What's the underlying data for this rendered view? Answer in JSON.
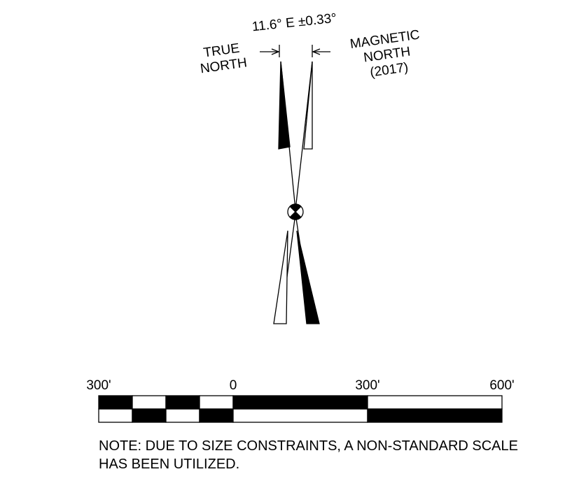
{
  "declination": "11.6° E ±0.33°",
  "true_north": {
    "lines": [
      "TRUE",
      "NORTH"
    ]
  },
  "magnetic_north": {
    "lines": [
      "MAGNETIC",
      "NORTH",
      "(2017)"
    ]
  },
  "scale": {
    "labels": [
      "300'",
      "0",
      "300'",
      "600'"
    ]
  },
  "note": {
    "lines": [
      "NOTE: DUE TO SIZE CONSTRAINTS, A NON-STANDARD SCALE",
      "HAS BEEN UTILIZED."
    ]
  }
}
